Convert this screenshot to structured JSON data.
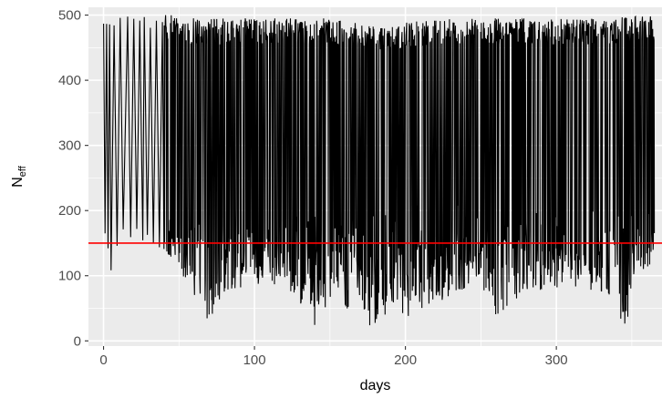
{
  "chart_data": {
    "type": "line",
    "xlabel": "days",
    "ylabel": "N",
    "ylabel_subscript": "eff",
    "xlim": [
      -10,
      370
    ],
    "ylim": [
      -8,
      512
    ],
    "x_ticks": [
      0,
      100,
      200,
      300
    ],
    "x_tick_labels": [
      "0",
      "100",
      "200",
      "300"
    ],
    "y_ticks": [
      0,
      100,
      200,
      300,
      400,
      500
    ],
    "y_tick_labels": [
      "0",
      "100",
      "200",
      "300",
      "400",
      "500"
    ],
    "grid": true,
    "panel_background": "#ebebeb",
    "grid_color": "#ffffff",
    "series": [
      {
        "color": "#000000",
        "description_of_extent": "dense oscillating trace; per-day range",
        "envelope": {
          "x": [
            0,
            5,
            10,
            20,
            30,
            40,
            50,
            60,
            67,
            80,
            100,
            120,
            137,
            150,
            170,
            180,
            185,
            190,
            200,
            220,
            250,
            260,
            280,
            300,
            320,
            340,
            345,
            355,
            365
          ],
          "y_min": [
            150,
            100,
            150,
            150,
            150,
            130,
            110,
            70,
            15,
            65,
            85,
            80,
            15,
            55,
            40,
            10,
            25,
            15,
            35,
            55,
            90,
            20,
            75,
            80,
            80,
            60,
            12,
            105,
            115
          ],
          "y_max": [
            500,
            500,
            500,
            500,
            500,
            500,
            500,
            495,
            495,
            495,
            495,
            495,
            495,
            495,
            490,
            485,
            483,
            483,
            490,
            495,
            495,
            495,
            495,
            495,
            495,
            497,
            497,
            498,
            500
          ]
        }
      }
    ],
    "reference_line": {
      "y": 150,
      "color": "#ff0000",
      "orientation": "horizontal"
    }
  }
}
